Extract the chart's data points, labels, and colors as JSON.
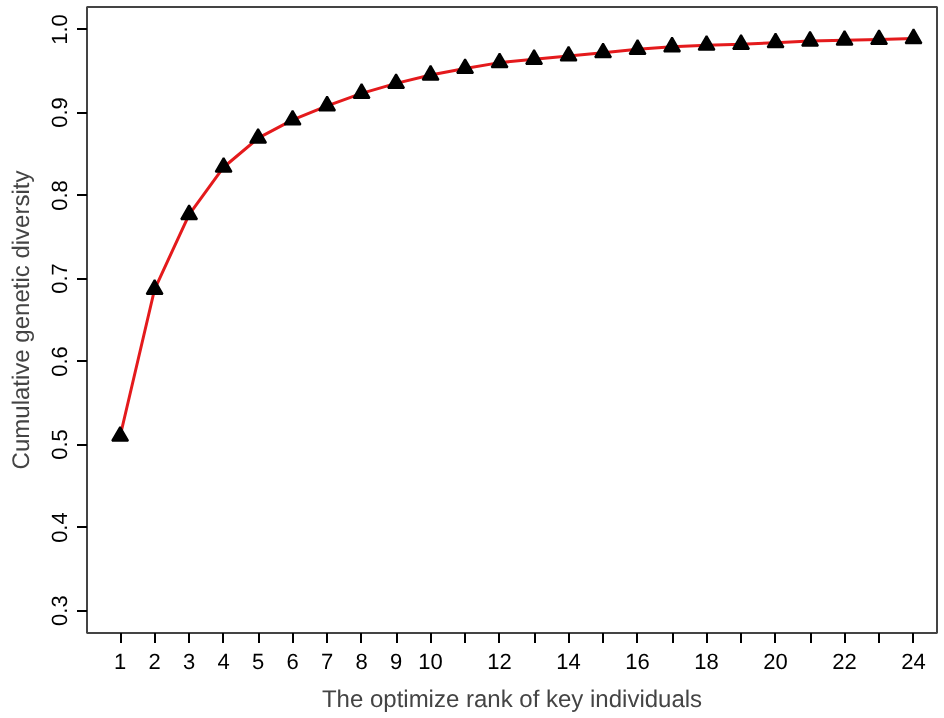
{
  "chart_data": {
    "type": "line",
    "xlabel": "The optimize rank of key individuals",
    "ylabel": "Cumulative genetic diversity",
    "x": [
      1,
      2,
      3,
      4,
      5,
      6,
      7,
      8,
      9,
      10,
      11,
      12,
      13,
      14,
      15,
      16,
      17,
      18,
      19,
      20,
      21,
      22,
      23,
      24
    ],
    "series": [
      {
        "color": "#e41a1c",
        "values": [
          0.51,
          0.687,
          0.777,
          0.834,
          0.869,
          0.891,
          0.908,
          0.923,
          0.935,
          0.945,
          0.953,
          0.96,
          0.964,
          0.968,
          0.972,
          0.976,
          0.979,
          0.981,
          0.982,
          0.984,
          0.986,
          0.987,
          0.988,
          0.989
        ]
      }
    ],
    "xlim": [
      0.04,
      24.68
    ],
    "ylim": [
      0.273,
      1.027
    ],
    "xticks": [
      1,
      2,
      3,
      4,
      5,
      6,
      7,
      8,
      9,
      10,
      {
        "value": 11,
        "label": null
      },
      12,
      {
        "value": 13,
        "label": null
      },
      14,
      {
        "value": 15,
        "label": null
      },
      16,
      {
        "value": 17,
        "label": null
      },
      18,
      {
        "value": 19,
        "label": null
      },
      20,
      {
        "value": 21,
        "label": null
      },
      22,
      {
        "value": 23,
        "label": null
      },
      24
    ],
    "yticks": [
      {
        "value": 0.3,
        "label": "0.3"
      },
      {
        "value": 0.4,
        "label": "0.4"
      },
      {
        "value": 0.5,
        "label": "0.5"
      },
      {
        "value": 0.6,
        "label": "0.6"
      },
      {
        "value": 0.7,
        "label": "0.7"
      },
      {
        "value": 0.8,
        "label": "0.8"
      },
      {
        "value": 0.9,
        "label": "0.9"
      },
      {
        "value": 1.0,
        "label": "1.0"
      }
    ],
    "marker": "triangle",
    "line_style": "solid",
    "grid": false
  }
}
